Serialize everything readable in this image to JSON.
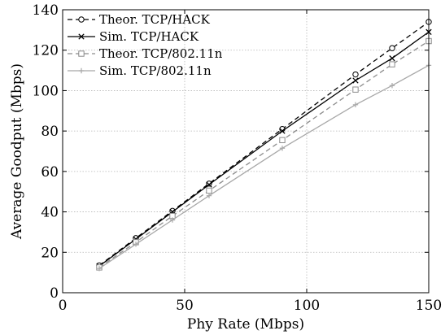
{
  "chart_data": {
    "type": "line",
    "title": "",
    "xlabel": "Phy Rate (Mbps)",
    "ylabel": "Average Goodput (Mbps)",
    "xlim": [
      0,
      150
    ],
    "ylim": [
      0,
      140
    ],
    "xticks": [
      0,
      50,
      100,
      150
    ],
    "yticks": [
      0,
      20,
      40,
      60,
      80,
      100,
      120,
      140
    ],
    "grid": true,
    "legend_position": "top-left",
    "x": [
      15,
      30,
      45,
      60,
      90,
      120,
      135,
      150
    ],
    "series": [
      {
        "name": "Theor. TCP/HACK",
        "values": [
          13.5,
          27,
          40.5,
          54,
          81,
          108,
          121,
          134
        ],
        "color": "#000000",
        "dash": "dashed",
        "marker": "circle"
      },
      {
        "name": "Sim. TCP/HACK",
        "values": [
          13.2,
          26.5,
          40,
          53.5,
          80,
          105,
          116,
          129
        ],
        "color": "#000000",
        "dash": "solid",
        "marker": "x"
      },
      {
        "name": "Theor. TCP/802.11n",
        "values": [
          12.5,
          25,
          38,
          50.5,
          75.5,
          100.5,
          113,
          124.5
        ],
        "color": "#8c8c8c",
        "dash": "dashed",
        "marker": "square"
      },
      {
        "name": "Sim. TCP/802.11n",
        "values": [
          12,
          24,
          36,
          48,
          71.5,
          93,
          102.5,
          112.5
        ],
        "color": "#a8a8a8",
        "dash": "solid",
        "marker": "plus"
      }
    ]
  }
}
